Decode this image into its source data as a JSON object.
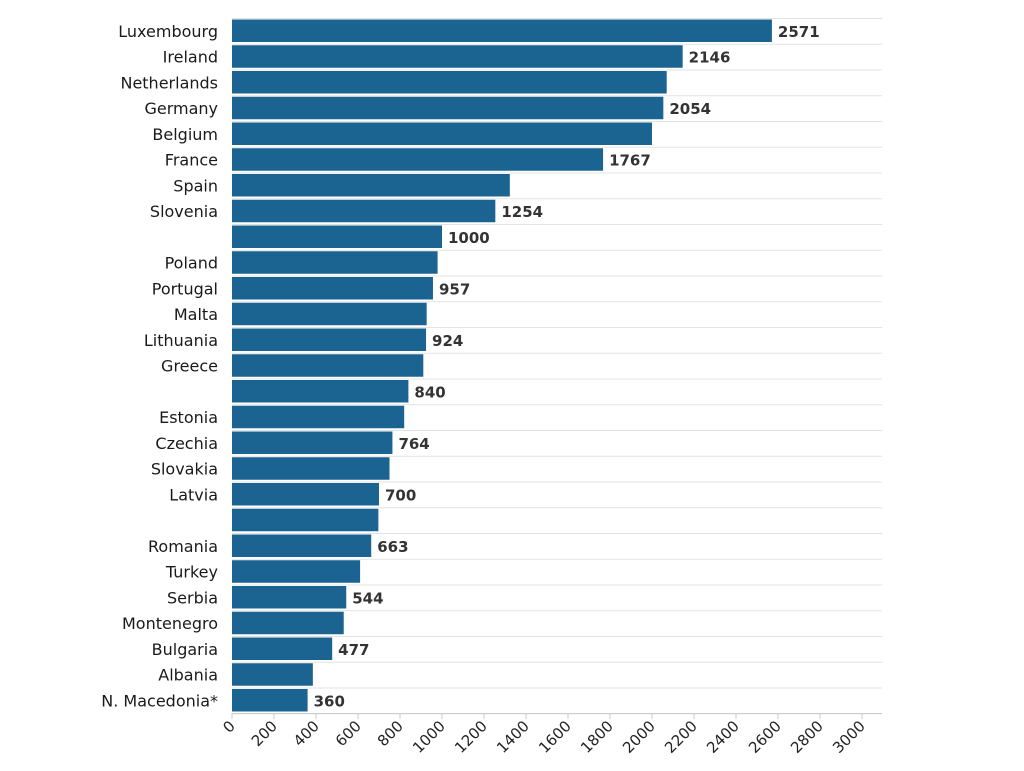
{
  "chart_data": {
    "type": "bar",
    "orientation": "horizontal",
    "title": "",
    "xlabel": "",
    "ylabel": "",
    "xlim": [
      0,
      3000
    ],
    "grid": true,
    "bar_color": "#1b6492",
    "x_ticks": [
      "0",
      "200",
      "400",
      "600",
      "800",
      "1000",
      "1200",
      "1400",
      "1600",
      "1800",
      "2000",
      "2200",
      "2400",
      "2600",
      "2800",
      "3000"
    ],
    "bars": [
      {
        "category": "Luxembourg",
        "value": 2571,
        "value_label": "2571"
      },
      {
        "category": "Ireland",
        "value": 2146,
        "value_label": "2146"
      },
      {
        "category": "Netherlands",
        "value": 2070,
        "value_label": ""
      },
      {
        "category": "Germany",
        "value": 2054,
        "value_label": "2054"
      },
      {
        "category": "Belgium",
        "value": 2000,
        "value_label": ""
      },
      {
        "category": "France",
        "value": 1767,
        "value_label": "1767"
      },
      {
        "category": "Spain",
        "value": 1323,
        "value_label": ""
      },
      {
        "category": "Slovenia",
        "value": 1254,
        "value_label": "1254"
      },
      {
        "category": "",
        "value": 1000,
        "value_label": "1000"
      },
      {
        "category": "Poland",
        "value": 979,
        "value_label": ""
      },
      {
        "category": "Portugal",
        "value": 957,
        "value_label": "957"
      },
      {
        "category": "Malta",
        "value": 927,
        "value_label": ""
      },
      {
        "category": "Lithuania",
        "value": 924,
        "value_label": "924"
      },
      {
        "category": "Greece",
        "value": 911,
        "value_label": ""
      },
      {
        "category": "",
        "value": 840,
        "value_label": "840"
      },
      {
        "category": "Estonia",
        "value": 820,
        "value_label": ""
      },
      {
        "category": "Czechia",
        "value": 764,
        "value_label": "764"
      },
      {
        "category": "Slovakia",
        "value": 750,
        "value_label": ""
      },
      {
        "category": "Latvia",
        "value": 700,
        "value_label": "700"
      },
      {
        "category": "",
        "value": 697,
        "value_label": ""
      },
      {
        "category": "Romania",
        "value": 663,
        "value_label": "663"
      },
      {
        "category": "Turkey",
        "value": 610,
        "value_label": ""
      },
      {
        "category": "Serbia",
        "value": 544,
        "value_label": "544"
      },
      {
        "category": "Montenegro",
        "value": 532,
        "value_label": ""
      },
      {
        "category": "Bulgaria",
        "value": 477,
        "value_label": "477"
      },
      {
        "category": "Albania",
        "value": 385,
        "value_label": ""
      },
      {
        "category": "N. Macedonia*",
        "value": 360,
        "value_label": "360"
      }
    ]
  }
}
